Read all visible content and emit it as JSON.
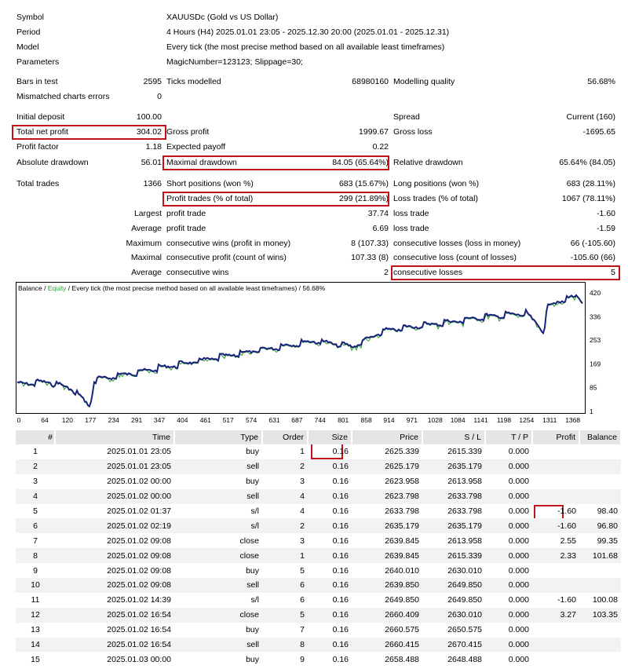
{
  "header_rows": [
    {
      "label": "Symbol",
      "value": "XAUUSDc (Gold vs US Dollar)"
    },
    {
      "label": "Period",
      "value": "4 Hours (H4) 2025.01.01 23:05 - 2025.12.30 20:00 (2025.01.01 - 2025.12.31)"
    },
    {
      "label": "Model",
      "value": "Every tick (the most precise method based on all available least timeframes)"
    },
    {
      "label": "Parameters",
      "value": "MagicNumber=123123; Slippage=30;"
    }
  ],
  "stats": {
    "bars_label": "Bars in test",
    "bars": "2595",
    "ticks_label": "Ticks modelled",
    "ticks": "68980160",
    "mq_label": "Modelling quality",
    "mq": "56.68%",
    "mismatch_label": "Mismatched charts errors",
    "mismatch": "0",
    "deposit_label": "Initial deposit",
    "deposit": "100.00",
    "spread_label": "Spread",
    "spread": "Current (160)",
    "netprofit_label": "Total net profit",
    "netprofit": "304.02",
    "grossprofit_label": "Gross profit",
    "grossprofit": "1999.67",
    "grossloss_label": "Gross loss",
    "grossloss": "-1695.65",
    "pf_label": "Profit factor",
    "pf": "1.18",
    "payoff_label": "Expected payoff",
    "payoff": "0.22",
    "absdd_label": "Absolute drawdown",
    "absdd": "56.01",
    "maxdd_label": "Maximal drawdown",
    "maxdd": "84.05 (65.64%)",
    "reldd_label": "Relative drawdown",
    "reldd": "65.64% (84.05)",
    "trades_label": "Total trades",
    "trades": "1366",
    "short_label": "Short positions (won %)",
    "short": "683 (15.67%)",
    "long_label": "Long positions (won %)",
    "long": "683 (28.11%)",
    "ptrades_label": "Profit trades (% of total)",
    "ptrades": "299 (21.89%)",
    "ltrades_label": "Loss trades (% of total)",
    "ltrades": "1067 (78.11%)",
    "largest_label": "Largest",
    "avg_label": "Average",
    "maximum_label": "Maximum",
    "maximal_label": "Maximal",
    "average2_label": "Average",
    "lpt_label": "profit trade",
    "lpt": "37.74",
    "llt_label": "loss trade",
    "llt": "-1.60",
    "apt_label": "profit trade",
    "apt": "6.69",
    "alt_label": "loss trade",
    "alt": "-1.59",
    "mcw_label": "consecutive wins (profit in money)",
    "mcw": "8 (107.33)",
    "mcl_label": "consecutive losses (loss in money)",
    "mcl": "66 (-105.60)",
    "mcp_label": "consecutive profit (count of wins)",
    "mcp": "107.33 (8)",
    "mclo_label": "consecutive loss (count of losses)",
    "mclo": "-105.60 (66)",
    "acw_label": "consecutive wins",
    "acw": "2",
    "acl_label": "consecutive losses",
    "acl": "5"
  },
  "chart": {
    "legend_balance": "Balance",
    "legend_sep": " / ",
    "legend_equity": "Equity",
    "legend_rest": " / Every tick (the most precise method based on all available least timeframes) / 56.68%",
    "balance_color": "#1a237e",
    "equity_color": "#2e9e2e",
    "y_ticks": [
      "420",
      "336",
      "253",
      "169",
      "85",
      "1"
    ],
    "y_min": 1,
    "y_max": 420,
    "x_ticks": [
      "0",
      "64",
      "120",
      "177",
      "234",
      "291",
      "347",
      "404",
      "461",
      "517",
      "574",
      "631",
      "687",
      "744",
      "801",
      "858",
      "914",
      "971",
      "1028",
      "1084",
      "1141",
      "1198",
      "1254",
      "1311",
      "1368"
    ],
    "x_max": 1390
  },
  "table": {
    "headers": [
      "#",
      "Time",
      "Type",
      "Order",
      "Size",
      "Price",
      "S / L",
      "T / P",
      "Profit",
      "Balance"
    ],
    "rows": [
      [
        "1",
        "2025.01.01 23:05",
        "buy",
        "1",
        "0.16",
        "2625.339",
        "2615.339",
        "0.000",
        "",
        ""
      ],
      [
        "2",
        "2025.01.01 23:05",
        "sell",
        "2",
        "0.16",
        "2625.179",
        "2635.179",
        "0.000",
        "",
        ""
      ],
      [
        "3",
        "2025.01.02 00:00",
        "buy",
        "3",
        "0.16",
        "2623.958",
        "2613.958",
        "0.000",
        "",
        ""
      ],
      [
        "4",
        "2025.01.02 00:00",
        "sell",
        "4",
        "0.16",
        "2623.798",
        "2633.798",
        "0.000",
        "",
        ""
      ],
      [
        "5",
        "2025.01.02 01:37",
        "s/l",
        "4",
        "0.16",
        "2633.798",
        "2633.798",
        "0.000",
        "-1.60",
        "98.40"
      ],
      [
        "6",
        "2025.01.02 02:19",
        "s/l",
        "2",
        "0.16",
        "2635.179",
        "2635.179",
        "0.000",
        "-1.60",
        "96.80"
      ],
      [
        "7",
        "2025.01.02 09:08",
        "close",
        "3",
        "0.16",
        "2639.845",
        "2613.958",
        "0.000",
        "2.55",
        "99.35"
      ],
      [
        "8",
        "2025.01.02 09:08",
        "close",
        "1",
        "0.16",
        "2639.845",
        "2615.339",
        "0.000",
        "2.33",
        "101.68"
      ],
      [
        "9",
        "2025.01.02 09:08",
        "buy",
        "5",
        "0.16",
        "2640.010",
        "2630.010",
        "0.000",
        "",
        ""
      ],
      [
        "10",
        "2025.01.02 09:08",
        "sell",
        "6",
        "0.16",
        "2639.850",
        "2649.850",
        "0.000",
        "",
        ""
      ],
      [
        "11",
        "2025.01.02 14:39",
        "s/l",
        "6",
        "0.16",
        "2649.850",
        "2649.850",
        "0.000",
        "-1.60",
        "100.08"
      ],
      [
        "12",
        "2025.01.02 16:54",
        "close",
        "5",
        "0.16",
        "2660.409",
        "2630.010",
        "0.000",
        "3.27",
        "103.35"
      ],
      [
        "13",
        "2025.01.02 16:54",
        "buy",
        "7",
        "0.16",
        "2660.575",
        "2650.575",
        "0.000",
        "",
        ""
      ],
      [
        "14",
        "2025.01.02 16:54",
        "sell",
        "8",
        "0.16",
        "2660.415",
        "2670.415",
        "0.000",
        "",
        ""
      ],
      [
        "15",
        "2025.01.03 00:00",
        "buy",
        "9",
        "0.16",
        "2658.488",
        "2648.488",
        "0.000",
        "",
        ""
      ]
    ]
  }
}
